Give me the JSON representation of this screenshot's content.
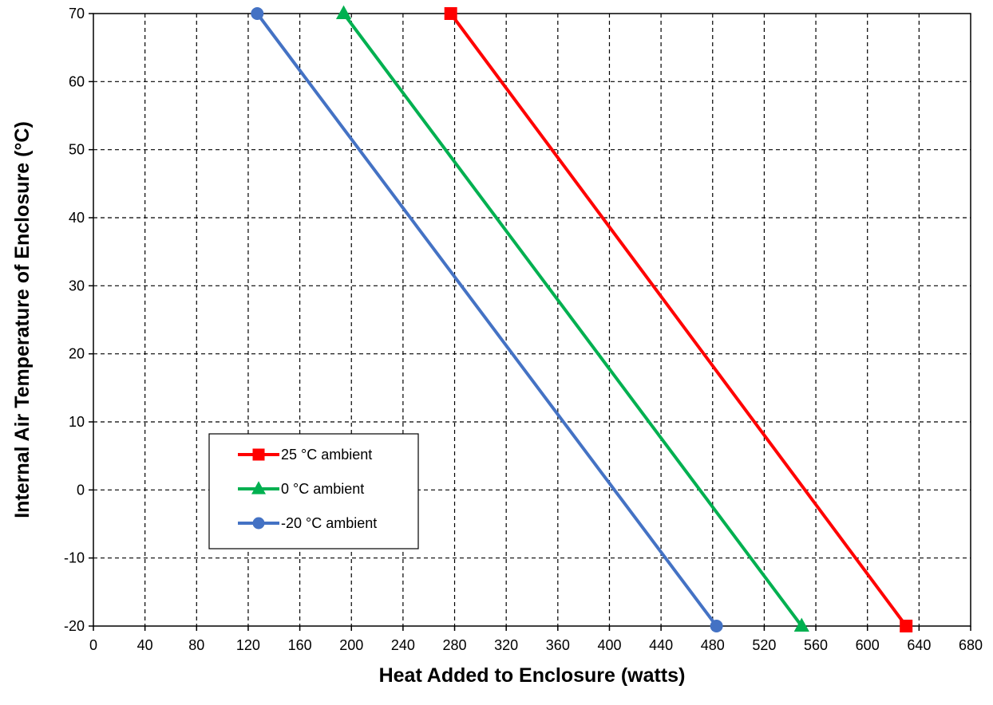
{
  "chart_data": {
    "type": "line",
    "title": "",
    "xlabel": "Heat Added to Enclosure (watts)",
    "ylabel": "Internal Air Temperature of Enclosure (°C)",
    "xlim": [
      0,
      680
    ],
    "ylim": [
      -20,
      70
    ],
    "xticks": [
      0,
      40,
      80,
      120,
      160,
      200,
      240,
      280,
      320,
      360,
      400,
      440,
      480,
      520,
      560,
      600,
      640,
      680
    ],
    "yticks": [
      -20,
      -10,
      0,
      10,
      20,
      30,
      40,
      50,
      60,
      70
    ],
    "xtick_labels": [
      "0",
      "40",
      "80",
      "120",
      "160",
      "200",
      "240",
      "280",
      "320",
      "360",
      "400",
      "440",
      "480",
      "520",
      "560",
      "600",
      "640",
      "680"
    ],
    "ytick_labels": [
      "-20",
      "-10",
      "0",
      "10",
      "20",
      "30",
      "40",
      "50",
      "60",
      "70"
    ],
    "grid": true,
    "legend_position": "bottom-left",
    "series": [
      {
        "name": "25 °C ambient",
        "color": "#ff0000",
        "marker": "square",
        "x": [
          277,
          630
        ],
        "y": [
          70,
          -20
        ]
      },
      {
        "name": "0 °C ambient",
        "color": "#00b050",
        "marker": "triangle",
        "x": [
          194,
          549
        ],
        "y": [
          70,
          -20
        ]
      },
      {
        "name": "-20 °C ambient",
        "color": "#4472c4",
        "marker": "circle",
        "x": [
          127,
          483
        ],
        "y": [
          70,
          -20
        ]
      }
    ]
  }
}
